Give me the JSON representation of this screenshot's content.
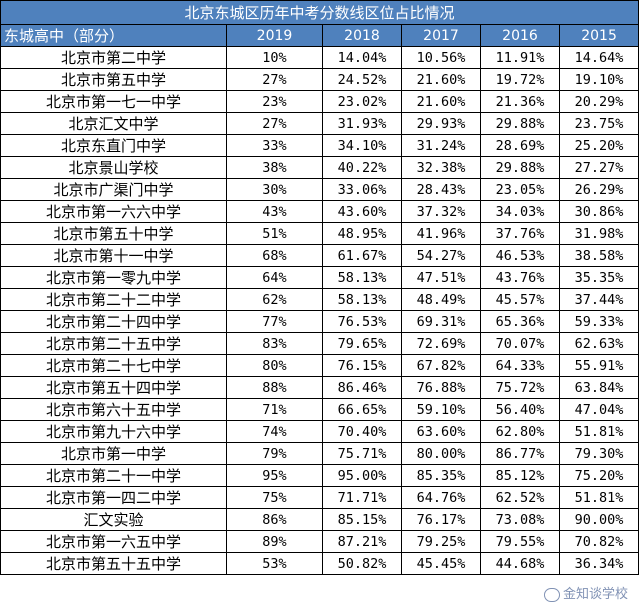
{
  "table": {
    "title": "北京东城区历年中考分数线区位占比情况",
    "headers": [
      "东城高中（部分）",
      "2019",
      "2018",
      "2017",
      "2016",
      "2015"
    ],
    "rows": [
      [
        "北京市第二中学",
        "10%",
        "14.04%",
        "10.56%",
        "11.91%",
        "14.64%"
      ],
      [
        "北京市第五中学",
        "27%",
        "24.52%",
        "21.60%",
        "19.72%",
        "19.10%"
      ],
      [
        "北京市第一七一中学",
        "23%",
        "23.02%",
        "21.60%",
        "21.36%",
        "20.29%"
      ],
      [
        "北京汇文中学",
        "27%",
        "31.93%",
        "29.93%",
        "29.88%",
        "23.75%"
      ],
      [
        "北京东直门中学",
        "33%",
        "34.10%",
        "31.24%",
        "28.69%",
        "25.20%"
      ],
      [
        "北京景山学校",
        "38%",
        "40.22%",
        "32.38%",
        "29.88%",
        "27.27%"
      ],
      [
        "北京市广渠门中学",
        "30%",
        "33.06%",
        "28.43%",
        "23.05%",
        "26.29%"
      ],
      [
        "北京市第一六六中学",
        "43%",
        "43.60%",
        "37.32%",
        "34.03%",
        "30.86%"
      ],
      [
        "北京市第五十中学",
        "51%",
        "48.95%",
        "41.96%",
        "37.76%",
        "31.98%"
      ],
      [
        "北京市第十一中学",
        "68%",
        "61.67%",
        "54.27%",
        "46.53%",
        "38.58%"
      ],
      [
        "北京市第一零九中学",
        "64%",
        "58.13%",
        "47.51%",
        "43.76%",
        "35.35%"
      ],
      [
        "北京市第二十二中学",
        "62%",
        "58.13%",
        "48.49%",
        "45.57%",
        "37.44%"
      ],
      [
        "北京市第二十四中学",
        "77%",
        "76.53%",
        "69.31%",
        "65.36%",
        "59.33%"
      ],
      [
        "北京市第二十五中学",
        "83%",
        "79.65%",
        "72.69%",
        "70.07%",
        "62.63%"
      ],
      [
        "北京市第二十七中学",
        "80%",
        "76.15%",
        "67.82%",
        "64.33%",
        "55.91%"
      ],
      [
        "北京市第五十四中学",
        "88%",
        "86.46%",
        "76.88%",
        "75.72%",
        "63.84%"
      ],
      [
        "北京市第六十五中学",
        "71%",
        "66.65%",
        "59.10%",
        "56.40%",
        "47.04%"
      ],
      [
        "北京市第九十六中学",
        "74%",
        "70.40%",
        "63.60%",
        "62.80%",
        "51.81%"
      ],
      [
        "北京市第一中学",
        "79%",
        "75.71%",
        "80.00%",
        "86.77%",
        "79.30%"
      ],
      [
        "北京市第二十一中学",
        "95%",
        "95.00%",
        "85.35%",
        "85.12%",
        "75.20%"
      ],
      [
        "北京市第一四二中学",
        "75%",
        "71.71%",
        "64.76%",
        "62.52%",
        "51.81%"
      ],
      [
        "汇文实验",
        "86%",
        "85.15%",
        "76.17%",
        "73.08%",
        "90.00%"
      ],
      [
        "北京市第一六五中学",
        "89%",
        "87.21%",
        "79.25%",
        "79.55%",
        "70.82%"
      ],
      [
        "北京市第五十五中学",
        "53%",
        "50.82%",
        "45.45%",
        "44.68%",
        "36.34%"
      ]
    ]
  },
  "watermark": {
    "text": "金知谈学校",
    "icon": "wechat-icon"
  }
}
